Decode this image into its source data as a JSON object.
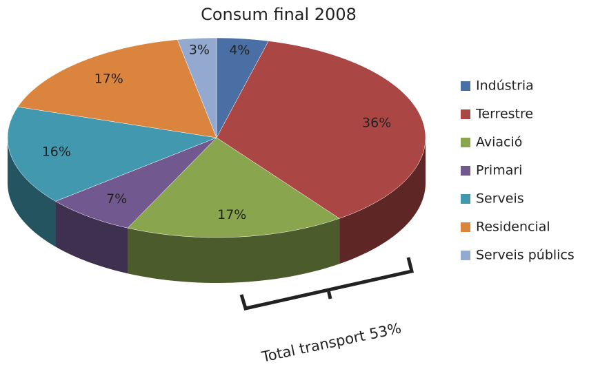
{
  "chart_data": {
    "type": "pie3d",
    "title": "Consum final 2008",
    "categories": [
      "Indústria",
      "Terrestre",
      "Aviació",
      "Primari",
      "Serveis",
      "Residencial",
      "Serveis públics"
    ],
    "values": [
      4,
      36,
      17,
      7,
      16,
      17,
      3
    ],
    "value_labels": [
      "4%",
      "36%",
      "17%",
      "7%",
      "16%",
      "17%",
      "3%"
    ],
    "colors": [
      "#4a6fa5",
      "#aa4643",
      "#89a54e",
      "#71588f",
      "#4198af",
      "#db843d",
      "#93a9cf"
    ],
    "legend": "right",
    "annotation": "Total transport 53%"
  }
}
